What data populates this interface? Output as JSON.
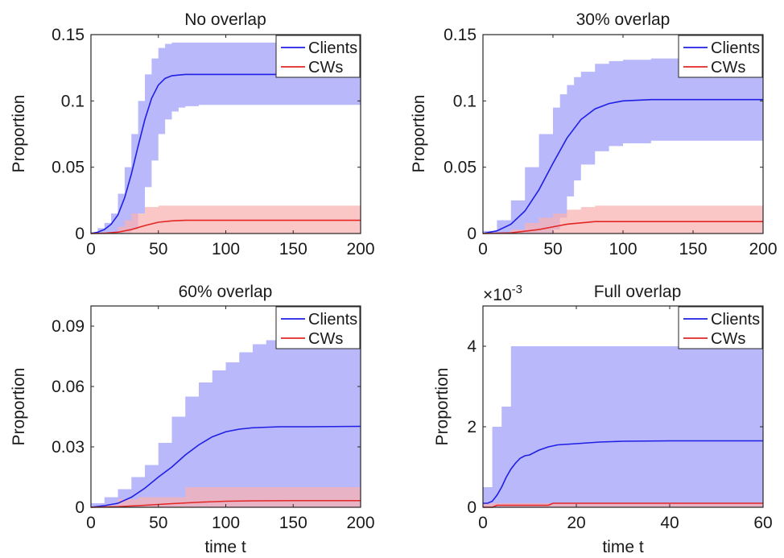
{
  "figure": {
    "legend_labels": [
      "Clients",
      "CWs"
    ],
    "colors": {
      "clients_line": "#1f1fe6",
      "clients_band": "#b4b4fa",
      "cws_line": "#e32626",
      "cws_band": "#f8b3b3",
      "axis": "#262626"
    }
  },
  "chart_data": [
    {
      "type": "line",
      "title": "No overlap",
      "xlabel": "",
      "ylabel": "Proportion",
      "xlim": [
        0,
        200
      ],
      "ylim": [
        0,
        0.15
      ],
      "xticks": [
        0,
        50,
        100,
        150,
        200
      ],
      "xtick_labels": [
        "0",
        "50",
        "100",
        "150",
        "200"
      ],
      "yticks": [
        0,
        0.05,
        0.1,
        0.15
      ],
      "ytick_labels": [
        "0",
        "0.05",
        "0.1",
        "0.15"
      ],
      "exponent_label": "",
      "legend": "top-right",
      "grid": false,
      "series": [
        {
          "name": "Clients",
          "x": [
            0,
            5,
            10,
            15,
            20,
            25,
            30,
            35,
            40,
            45,
            50,
            55,
            60,
            65,
            70,
            80,
            100,
            150,
            200
          ],
          "y": [
            0,
            0.001,
            0.003,
            0.007,
            0.014,
            0.027,
            0.045,
            0.066,
            0.086,
            0.102,
            0.112,
            0.117,
            0.119,
            0.1195,
            0.12,
            0.12,
            0.12,
            0.12,
            0.12
          ],
          "band_x": [
            0,
            5,
            10,
            15,
            20,
            25,
            30,
            35,
            40,
            45,
            50,
            55,
            60,
            65,
            70,
            80,
            100,
            150,
            200
          ],
          "band_lower": [
            0,
            0,
            0,
            0,
            0,
            0.001,
            0.003,
            0.015,
            0.035,
            0.055,
            0.075,
            0.086,
            0.092,
            0.095,
            0.096,
            0.097,
            0.097,
            0.097,
            0.097
          ],
          "band_upper": [
            0.001,
            0.004,
            0.008,
            0.015,
            0.03,
            0.05,
            0.075,
            0.1,
            0.12,
            0.132,
            0.14,
            0.143,
            0.144,
            0.144,
            0.144,
            0.144,
            0.144,
            0.144,
            0.144
          ]
        },
        {
          "name": "CWs",
          "x": [
            0,
            10,
            20,
            30,
            40,
            50,
            60,
            70,
            100,
            150,
            200
          ],
          "y": [
            0,
            0.0002,
            0.001,
            0.003,
            0.006,
            0.0085,
            0.0095,
            0.01,
            0.01,
            0.01,
            0.01
          ],
          "band_x": [
            0,
            10,
            20,
            25,
            30,
            40,
            50,
            60,
            100,
            200
          ],
          "band_lower": [
            0,
            0,
            0,
            0,
            0,
            0,
            0,
            0,
            0,
            0
          ],
          "band_upper": [
            0,
            0.001,
            0.005,
            0.01,
            0.015,
            0.02,
            0.021,
            0.021,
            0.021,
            0.021
          ]
        }
      ]
    },
    {
      "type": "line",
      "title": "30% overlap",
      "xlabel": "",
      "ylabel": "Proportion",
      "xlim": [
        0,
        200
      ],
      "ylim": [
        0,
        0.15
      ],
      "xticks": [
        0,
        50,
        100,
        150,
        200
      ],
      "xtick_labels": [
        "0",
        "50",
        "100",
        "150",
        "200"
      ],
      "yticks": [
        0,
        0.05,
        0.1,
        0.15
      ],
      "ytick_labels": [
        "0",
        "0.05",
        "0.1",
        "0.15"
      ],
      "exponent_label": "",
      "legend": "top-right",
      "grid": false,
      "series": [
        {
          "name": "Clients",
          "x": [
            0,
            10,
            20,
            30,
            40,
            50,
            60,
            70,
            80,
            90,
            100,
            120,
            150,
            200
          ],
          "y": [
            0,
            0.002,
            0.007,
            0.017,
            0.033,
            0.053,
            0.072,
            0.086,
            0.094,
            0.098,
            0.1,
            0.101,
            0.101,
            0.101
          ],
          "band_x": [
            0,
            10,
            20,
            30,
            40,
            50,
            55,
            60,
            65,
            70,
            80,
            90,
            100,
            120,
            150,
            200
          ],
          "band_lower": [
            0,
            0,
            0,
            0,
            0,
            0.003,
            0.012,
            0.028,
            0.04,
            0.052,
            0.062,
            0.066,
            0.068,
            0.07,
            0.07,
            0.07
          ],
          "band_upper": [
            0.002,
            0.01,
            0.025,
            0.05,
            0.075,
            0.095,
            0.105,
            0.112,
            0.118,
            0.122,
            0.128,
            0.13,
            0.131,
            0.132,
            0.133,
            0.133
          ]
        },
        {
          "name": "CWs",
          "x": [
            0,
            20,
            40,
            50,
            60,
            70,
            80,
            100,
            150,
            200
          ],
          "y": [
            0,
            0.0005,
            0.003,
            0.005,
            0.007,
            0.008,
            0.009,
            0.009,
            0.009,
            0.009
          ],
          "band_x": [
            0,
            20,
            30,
            40,
            50,
            60,
            70,
            80,
            100,
            200
          ],
          "band_lower": [
            0,
            0,
            0,
            0,
            0,
            0,
            0,
            0,
            0,
            0
          ],
          "band_upper": [
            0,
            0.003,
            0.008,
            0.012,
            0.015,
            0.018,
            0.02,
            0.021,
            0.021,
            0.021
          ]
        }
      ]
    },
    {
      "type": "line",
      "title": "60% overlap",
      "xlabel": "time t",
      "ylabel": "Proportion",
      "xlim": [
        0,
        200
      ],
      "ylim": [
        0,
        0.1
      ],
      "xticks": [
        0,
        50,
        100,
        150,
        200
      ],
      "xtick_labels": [
        "0",
        "50",
        "100",
        "150",
        "200"
      ],
      "yticks": [
        0,
        0.03,
        0.06,
        0.09
      ],
      "ytick_labels": [
        "0",
        "0.03",
        "0.06",
        "0.09"
      ],
      "exponent_label": "",
      "legend": "top-right",
      "grid": false,
      "series": [
        {
          "name": "Clients",
          "x": [
            0,
            10,
            20,
            30,
            40,
            50,
            60,
            70,
            80,
            90,
            100,
            110,
            120,
            140,
            160,
            200
          ],
          "y": [
            0,
            0.0008,
            0.002,
            0.005,
            0.0095,
            0.015,
            0.02,
            0.026,
            0.031,
            0.035,
            0.0375,
            0.0388,
            0.0395,
            0.04,
            0.04,
            0.0402
          ],
          "band_x": [
            0,
            10,
            20,
            30,
            40,
            50,
            60,
            70,
            80,
            90,
            100,
            110,
            120,
            130,
            140,
            160,
            200
          ],
          "band_lower": [
            0,
            0,
            0,
            0,
            0,
            0,
            0,
            0,
            0,
            0,
            0,
            0,
            0,
            0,
            0,
            0,
            0
          ],
          "band_upper": [
            0.002,
            0.005,
            0.009,
            0.015,
            0.021,
            0.032,
            0.045,
            0.055,
            0.062,
            0.068,
            0.072,
            0.077,
            0.081,
            0.083,
            0.084,
            0.084,
            0.084
          ]
        },
        {
          "name": "CWs",
          "x": [
            0,
            20,
            40,
            60,
            80,
            100,
            120,
            150,
            200
          ],
          "y": [
            0,
            0.0003,
            0.001,
            0.0018,
            0.0025,
            0.003,
            0.0032,
            0.0033,
            0.0033
          ],
          "band_x": [
            0,
            10,
            20,
            35,
            50,
            65,
            70,
            80,
            100,
            150,
            200
          ],
          "band_lower": [
            0,
            0,
            0,
            0,
            0,
            0,
            0,
            0,
            0,
            0,
            0
          ],
          "band_upper": [
            0,
            0.001,
            0.004,
            0.005,
            0.005,
            0.005,
            0.01,
            0.01,
            0.01,
            0.01,
            0.01
          ]
        }
      ]
    },
    {
      "type": "line",
      "title": "Full overlap",
      "xlabel": "time t",
      "ylabel": "Proportion",
      "xlim": [
        0,
        60
      ],
      "ylim": [
        0,
        5
      ],
      "xticks": [
        0,
        20,
        40,
        60
      ],
      "xtick_labels": [
        "0",
        "20",
        "40",
        "60"
      ],
      "yticks": [
        0,
        2,
        4
      ],
      "ytick_labels": [
        "0",
        "2",
        "4"
      ],
      "exponent_label": "×10",
      "exponent_power": "-3",
      "legend": "top-right",
      "grid": false,
      "series": [
        {
          "name": "Clients",
          "x": [
            0,
            1,
            2,
            3,
            4,
            5,
            6,
            7,
            8,
            9,
            10,
            12,
            14,
            16,
            20,
            25,
            30,
            40,
            50,
            60
          ],
          "y": [
            0.1,
            0.1,
            0.15,
            0.3,
            0.5,
            0.75,
            0.95,
            1.1,
            1.22,
            1.28,
            1.3,
            1.42,
            1.5,
            1.55,
            1.58,
            1.62,
            1.64,
            1.65,
            1.65,
            1.65
          ],
          "band_x": [
            0,
            1,
            2,
            3,
            4,
            5,
            6,
            60
          ],
          "band_lower": [
            0,
            0,
            0,
            0,
            0,
            0,
            0,
            0
          ],
          "band_upper": [
            0.5,
            0.5,
            2,
            2,
            2.5,
            2.5,
            4,
            4
          ]
        },
        {
          "name": "CWs",
          "x": [
            0,
            2,
            3,
            14,
            15,
            60
          ],
          "y": [
            0,
            0,
            0.05,
            0.05,
            0.1,
            0.1
          ],
          "band_x": [
            0,
            60
          ],
          "band_lower": [
            0,
            0
          ],
          "band_upper": [
            0.1,
            0.1
          ]
        }
      ]
    }
  ]
}
